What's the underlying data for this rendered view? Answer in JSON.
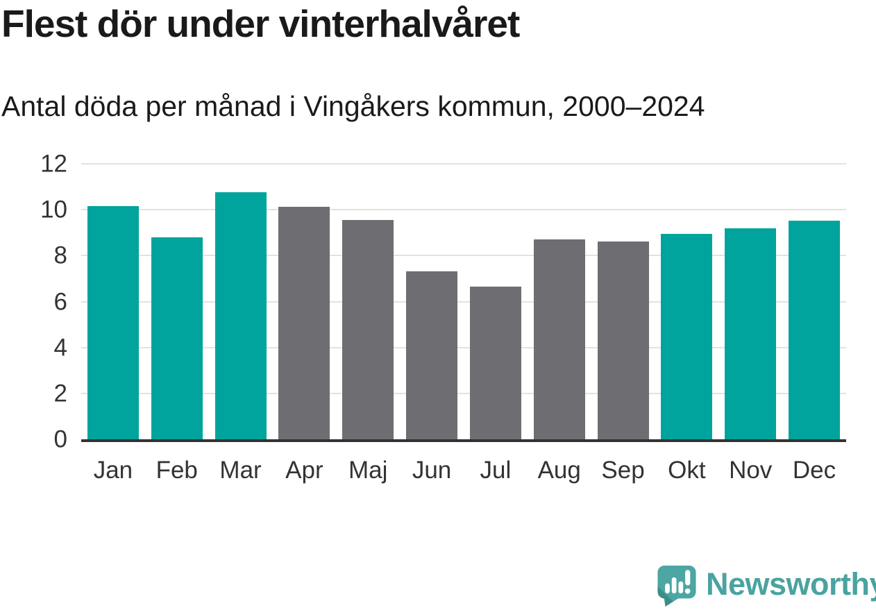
{
  "title": "Flest dör under vinterhalvåret",
  "subtitle": "Antal döda per månad i Vingåkers kommun, 2000–2024",
  "chart_data": {
    "type": "bar",
    "title": "Flest dör under vinterhalvåret",
    "subtitle": "Antal döda per månad i Vingåkers kommun, 2000–2024",
    "categories": [
      "Jan",
      "Feb",
      "Mar",
      "Apr",
      "Maj",
      "Jun",
      "Jul",
      "Aug",
      "Sep",
      "Okt",
      "Nov",
      "Dec"
    ],
    "values": [
      10.16,
      8.8,
      10.76,
      10.12,
      9.56,
      7.32,
      6.64,
      8.72,
      8.6,
      8.96,
      9.2,
      9.52
    ],
    "bar_groups": [
      "winter",
      "winter",
      "winter",
      "summer",
      "summer",
      "summer",
      "summer",
      "summer",
      "summer",
      "winter",
      "winter",
      "winter"
    ],
    "group_colors": {
      "winter": "#00a49c",
      "summer": "#6d6d72"
    },
    "xlabel": "",
    "ylabel": "",
    "ylim": [
      0,
      12
    ],
    "yticks": [
      0,
      2,
      4,
      6,
      8,
      10,
      12
    ],
    "grid": true,
    "legend_position": "none",
    "axis_color": "#333333",
    "gridline_color": "#e2e2e2"
  },
  "branding": {
    "wordmark": "Newsworthy",
    "wordmark_color": "#4aa3a0",
    "logo_icon": "newsworthy-speech-bubble-chart-icon",
    "logo_color": "#4ca6a3",
    "logo_shadow_color": "#3c8e8b",
    "logo_glyph_color": "#ffffff"
  }
}
